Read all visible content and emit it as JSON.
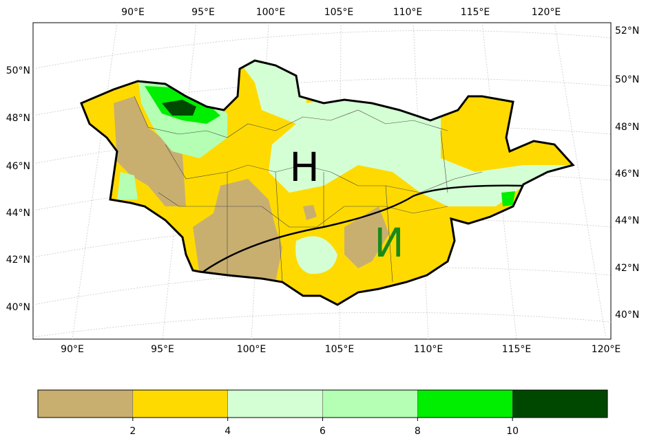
{
  "map": {
    "top_lon_labels": [
      "90°E",
      "95°E",
      "100°E",
      "105°E",
      "110°E",
      "115°E",
      "120°E"
    ],
    "bottom_lon_labels": [
      "90°E",
      "95°E",
      "100°E",
      "105°E",
      "110°E",
      "115°E",
      "120°E"
    ],
    "left_lat_labels": [
      "50°N",
      "48°N",
      "46°N",
      "44°N",
      "42°N",
      "40°N"
    ],
    "right_lat_labels": [
      "52°N",
      "50°N",
      "48°N",
      "46°N",
      "44°N",
      "42°N",
      "40°N"
    ],
    "annotations": [
      {
        "text": "Н",
        "color": "#000000"
      },
      {
        "text": "И",
        "color": "#1a8a1a"
      }
    ]
  },
  "colorbar": {
    "levels": [
      0,
      2,
      4,
      6,
      8,
      10,
      12
    ],
    "ticks": [
      2,
      4,
      6,
      8,
      10
    ],
    "colors": [
      "#c8af70",
      "#ffda00",
      "#d4ffd4",
      "#b4ffb4",
      "#00ee00",
      "#004800"
    ]
  }
}
